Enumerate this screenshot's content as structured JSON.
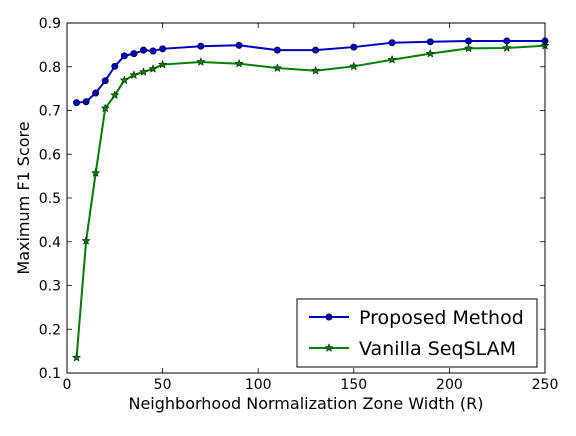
{
  "chart_data": {
    "type": "line",
    "title": "",
    "xlabel": "Neighborhood Normalization Zone Width (R)",
    "ylabel": "Maximum F1 Score",
    "xlim": [
      0,
      250
    ],
    "ylim": [
      0.1,
      0.9
    ],
    "xticks": [
      0,
      50,
      100,
      150,
      200,
      250
    ],
    "yticks": [
      0.1,
      0.2,
      0.3,
      0.4,
      0.5,
      0.6,
      0.7,
      0.8,
      0.9
    ],
    "xtick_labels": [
      "0",
      "50",
      "100",
      "150",
      "200",
      "250"
    ],
    "ytick_labels": [
      "0.1",
      "0.2",
      "0.3",
      "0.4",
      "0.5",
      "0.6",
      "0.7",
      "0.8",
      "0.9"
    ],
    "grid": false,
    "legend_position": "lower-right",
    "series": [
      {
        "name": "Proposed Method",
        "color": "#0000bf",
        "marker": "circle",
        "x": [
          5,
          10,
          15,
          20,
          25,
          30,
          35,
          40,
          45,
          50,
          70,
          90,
          110,
          130,
          150,
          170,
          190,
          210,
          230,
          250
        ],
        "y": [
          0.718,
          0.72,
          0.74,
          0.768,
          0.801,
          0.825,
          0.83,
          0.838,
          0.836,
          0.841,
          0.847,
          0.849,
          0.838,
          0.838,
          0.845,
          0.855,
          0.857,
          0.859,
          0.859,
          0.859
        ]
      },
      {
        "name": "Vanilla SeqSLAM",
        "color": "#007f00",
        "marker": "star",
        "x": [
          5,
          10,
          15,
          20,
          25,
          30,
          35,
          40,
          45,
          50,
          70,
          90,
          110,
          130,
          150,
          170,
          190,
          210,
          230,
          250
        ],
        "y": [
          0.135,
          0.402,
          0.557,
          0.705,
          0.735,
          0.769,
          0.781,
          0.788,
          0.795,
          0.805,
          0.811,
          0.807,
          0.797,
          0.791,
          0.801,
          0.816,
          0.83,
          0.842,
          0.843,
          0.848
        ]
      }
    ]
  }
}
